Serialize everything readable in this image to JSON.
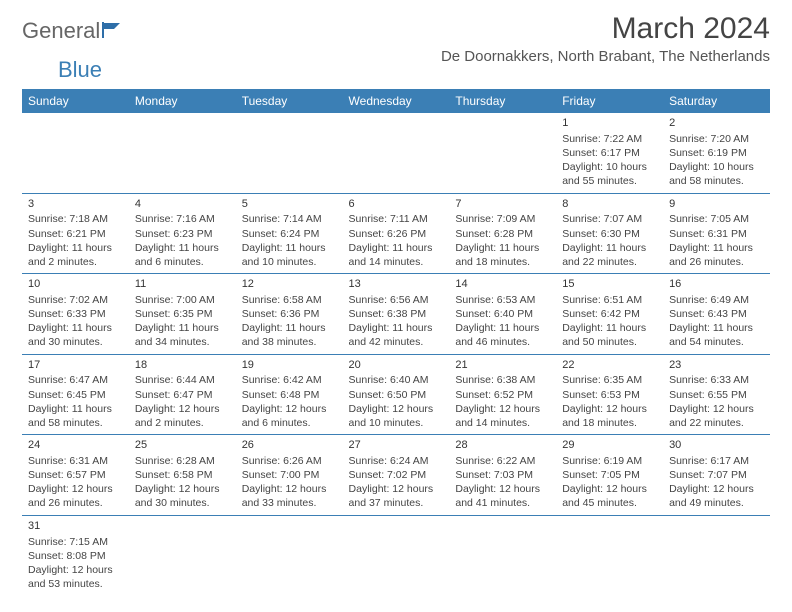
{
  "brand": {
    "general": "General",
    "blue": "Blue"
  },
  "title": "March 2024",
  "subtitle": "De Doornakkers, North Brabant, The Netherlands",
  "colors": {
    "header_bg": "#3b7fb5",
    "header_fg": "#ffffff",
    "border": "#3b7fb5"
  },
  "daynames": [
    "Sunday",
    "Monday",
    "Tuesday",
    "Wednesday",
    "Thursday",
    "Friday",
    "Saturday"
  ],
  "weeks": [
    [
      null,
      null,
      null,
      null,
      null,
      {
        "n": "1",
        "sunrise": "7:22 AM",
        "sunset": "6:17 PM",
        "day_h": "10",
        "day_m": "55"
      },
      {
        "n": "2",
        "sunrise": "7:20 AM",
        "sunset": "6:19 PM",
        "day_h": "10",
        "day_m": "58"
      }
    ],
    [
      {
        "n": "3",
        "sunrise": "7:18 AM",
        "sunset": "6:21 PM",
        "day_h": "11",
        "day_m": "2"
      },
      {
        "n": "4",
        "sunrise": "7:16 AM",
        "sunset": "6:23 PM",
        "day_h": "11",
        "day_m": "6"
      },
      {
        "n": "5",
        "sunrise": "7:14 AM",
        "sunset": "6:24 PM",
        "day_h": "11",
        "day_m": "10"
      },
      {
        "n": "6",
        "sunrise": "7:11 AM",
        "sunset": "6:26 PM",
        "day_h": "11",
        "day_m": "14"
      },
      {
        "n": "7",
        "sunrise": "7:09 AM",
        "sunset": "6:28 PM",
        "day_h": "11",
        "day_m": "18"
      },
      {
        "n": "8",
        "sunrise": "7:07 AM",
        "sunset": "6:30 PM",
        "day_h": "11",
        "day_m": "22"
      },
      {
        "n": "9",
        "sunrise": "7:05 AM",
        "sunset": "6:31 PM",
        "day_h": "11",
        "day_m": "26"
      }
    ],
    [
      {
        "n": "10",
        "sunrise": "7:02 AM",
        "sunset": "6:33 PM",
        "day_h": "11",
        "day_m": "30"
      },
      {
        "n": "11",
        "sunrise": "7:00 AM",
        "sunset": "6:35 PM",
        "day_h": "11",
        "day_m": "34"
      },
      {
        "n": "12",
        "sunrise": "6:58 AM",
        "sunset": "6:36 PM",
        "day_h": "11",
        "day_m": "38"
      },
      {
        "n": "13",
        "sunrise": "6:56 AM",
        "sunset": "6:38 PM",
        "day_h": "11",
        "day_m": "42"
      },
      {
        "n": "14",
        "sunrise": "6:53 AM",
        "sunset": "6:40 PM",
        "day_h": "11",
        "day_m": "46"
      },
      {
        "n": "15",
        "sunrise": "6:51 AM",
        "sunset": "6:42 PM",
        "day_h": "11",
        "day_m": "50"
      },
      {
        "n": "16",
        "sunrise": "6:49 AM",
        "sunset": "6:43 PM",
        "day_h": "11",
        "day_m": "54"
      }
    ],
    [
      {
        "n": "17",
        "sunrise": "6:47 AM",
        "sunset": "6:45 PM",
        "day_h": "11",
        "day_m": "58"
      },
      {
        "n": "18",
        "sunrise": "6:44 AM",
        "sunset": "6:47 PM",
        "day_h": "12",
        "day_m": "2"
      },
      {
        "n": "19",
        "sunrise": "6:42 AM",
        "sunset": "6:48 PM",
        "day_h": "12",
        "day_m": "6"
      },
      {
        "n": "20",
        "sunrise": "6:40 AM",
        "sunset": "6:50 PM",
        "day_h": "12",
        "day_m": "10"
      },
      {
        "n": "21",
        "sunrise": "6:38 AM",
        "sunset": "6:52 PM",
        "day_h": "12",
        "day_m": "14"
      },
      {
        "n": "22",
        "sunrise": "6:35 AM",
        "sunset": "6:53 PM",
        "day_h": "12",
        "day_m": "18"
      },
      {
        "n": "23",
        "sunrise": "6:33 AM",
        "sunset": "6:55 PM",
        "day_h": "12",
        "day_m": "22"
      }
    ],
    [
      {
        "n": "24",
        "sunrise": "6:31 AM",
        "sunset": "6:57 PM",
        "day_h": "12",
        "day_m": "26"
      },
      {
        "n": "25",
        "sunrise": "6:28 AM",
        "sunset": "6:58 PM",
        "day_h": "12",
        "day_m": "30"
      },
      {
        "n": "26",
        "sunrise": "6:26 AM",
        "sunset": "7:00 PM",
        "day_h": "12",
        "day_m": "33"
      },
      {
        "n": "27",
        "sunrise": "6:24 AM",
        "sunset": "7:02 PM",
        "day_h": "12",
        "day_m": "37"
      },
      {
        "n": "28",
        "sunrise": "6:22 AM",
        "sunset": "7:03 PM",
        "day_h": "12",
        "day_m": "41"
      },
      {
        "n": "29",
        "sunrise": "6:19 AM",
        "sunset": "7:05 PM",
        "day_h": "12",
        "day_m": "45"
      },
      {
        "n": "30",
        "sunrise": "6:17 AM",
        "sunset": "7:07 PM",
        "day_h": "12",
        "day_m": "49"
      }
    ],
    [
      {
        "n": "31",
        "sunrise": "7:15 AM",
        "sunset": "8:08 PM",
        "day_h": "12",
        "day_m": "53"
      },
      null,
      null,
      null,
      null,
      null,
      null
    ]
  ],
  "labels": {
    "sunrise": "Sunrise:",
    "sunset": "Sunset:",
    "daylight_prefix": "Daylight:",
    "hours_word": "hours",
    "and_word": "and",
    "minutes_word": "minutes."
  }
}
